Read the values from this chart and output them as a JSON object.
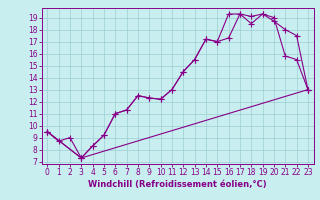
{
  "bg_color": "#c8eef0",
  "grid_color": "#9ccdd4",
  "line_color": "#880088",
  "marker": "+",
  "markersize": 4,
  "linewidth": 0.8,
  "xlabel": "Windchill (Refroidissement éolien,°C)",
  "xlabel_fontsize": 6,
  "tick_fontsize": 5.5,
  "xlim": [
    -0.5,
    23.5
  ],
  "ylim": [
    6.8,
    19.8
  ],
  "yticks": [
    7,
    8,
    9,
    10,
    11,
    12,
    13,
    14,
    15,
    16,
    17,
    18,
    19
  ],
  "xticks": [
    0,
    1,
    2,
    3,
    4,
    5,
    6,
    7,
    8,
    9,
    10,
    11,
    12,
    13,
    14,
    15,
    16,
    17,
    18,
    19,
    20,
    21,
    22,
    23
  ],
  "line1_x": [
    0,
    1,
    2,
    3,
    4,
    5,
    6,
    7,
    8,
    9,
    10,
    11,
    12,
    13,
    14,
    15,
    16,
    17,
    18,
    19,
    20,
    21,
    22,
    23
  ],
  "line1_y": [
    9.5,
    8.7,
    9.0,
    7.3,
    8.3,
    9.2,
    11.0,
    11.3,
    12.5,
    12.3,
    12.2,
    13.0,
    14.5,
    15.5,
    17.2,
    17.0,
    17.3,
    19.3,
    19.1,
    19.3,
    18.7,
    18.0,
    17.5,
    13.0
  ],
  "line2_x": [
    0,
    3,
    4,
    5,
    6,
    7,
    8,
    9,
    10,
    11,
    12,
    13,
    14,
    15,
    16,
    17,
    18,
    19,
    20,
    21,
    22,
    23
  ],
  "line2_y": [
    9.5,
    7.3,
    8.3,
    9.2,
    11.0,
    11.3,
    12.5,
    12.3,
    12.2,
    13.0,
    14.5,
    15.5,
    17.2,
    17.0,
    19.3,
    19.3,
    18.5,
    19.3,
    19.0,
    15.8,
    15.5,
    13.0
  ],
  "line3_x": [
    0,
    3,
    23
  ],
  "line3_y": [
    9.5,
    7.3,
    13.0
  ]
}
